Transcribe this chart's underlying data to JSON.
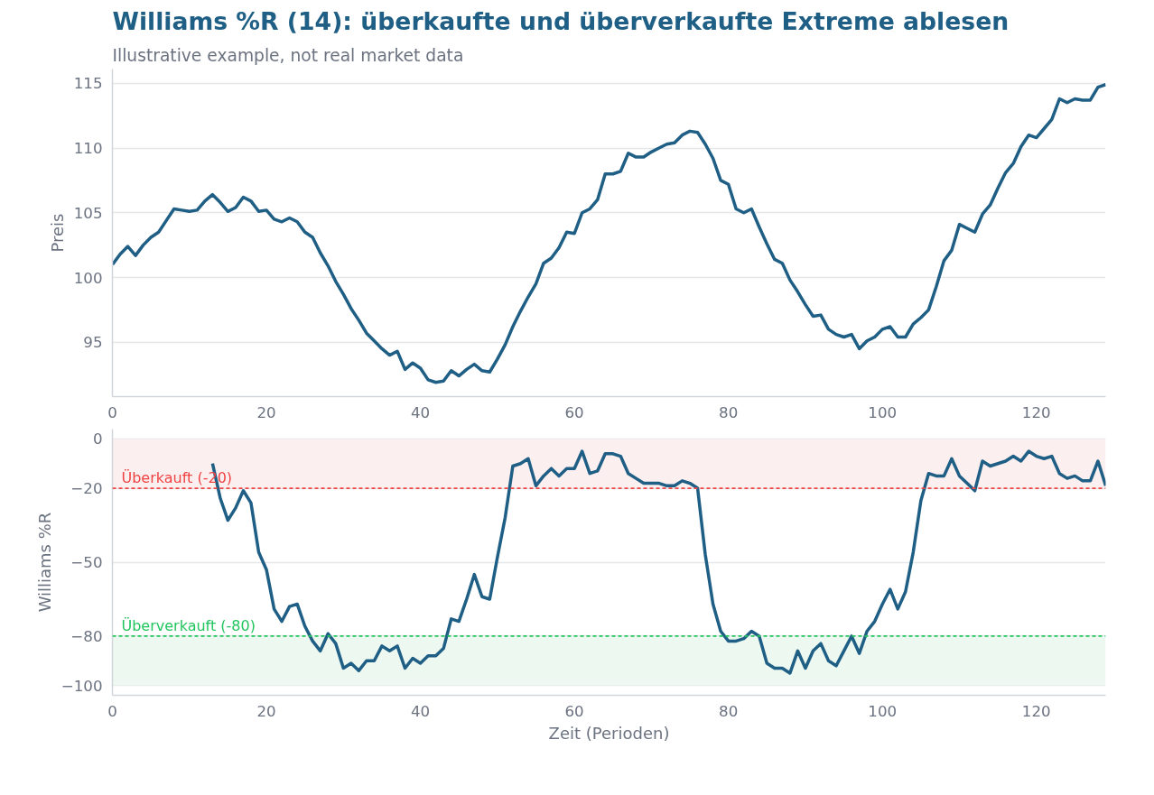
{
  "chart_data": [
    {
      "type": "line",
      "title": "Williams %R (14): überkaufte und überverkaufte Extreme ablesen",
      "subtitle": "Illustrative example, not real market data",
      "ylabel": "Preis",
      "x": [
        0,
        1,
        2,
        3,
        4,
        5,
        6,
        7,
        8,
        9,
        10,
        11,
        12,
        13,
        14,
        15,
        16,
        17,
        18,
        19,
        20,
        21,
        22,
        23,
        24,
        25,
        26,
        27,
        28,
        29,
        30,
        31,
        32,
        33,
        34,
        35,
        36,
        37,
        38,
        39,
        40,
        41,
        42,
        43,
        44,
        45,
        46,
        47,
        48,
        49,
        50,
        51,
        52,
        53,
        54,
        55,
        56,
        57,
        58,
        59,
        60,
        61,
        62,
        63,
        64,
        65,
        66,
        67,
        68,
        69,
        70,
        71,
        72,
        73,
        74,
        75,
        76,
        77,
        78,
        79,
        80,
        81,
        82,
        83,
        84,
        85,
        86,
        87,
        88,
        89,
        90,
        91,
        92,
        93,
        94,
        95,
        96,
        97,
        98,
        99,
        100,
        101,
        102,
        103,
        104,
        105,
        106,
        107,
        108,
        109,
        110,
        111,
        112,
        113,
        114,
        115,
        116,
        117,
        118,
        119,
        120,
        121,
        122,
        123,
        124,
        125,
        126,
        127,
        128,
        129
      ],
      "series": [
        {
          "color": "#1f5f85",
          "values": [
            101.0,
            101.8,
            102.4,
            101.7,
            102.5,
            103.1,
            103.5,
            104.4,
            105.3,
            105.2,
            105.1,
            105.2,
            105.9,
            106.4,
            105.8,
            105.1,
            105.4,
            106.2,
            105.9,
            105.1,
            105.2,
            104.5,
            104.3,
            104.6,
            104.3,
            103.5,
            103.1,
            101.9,
            100.9,
            99.7,
            98.7,
            97.6,
            96.7,
            95.7,
            95.1,
            94.5,
            94.0,
            94.3,
            92.9,
            93.4,
            93.0,
            92.1,
            91.9,
            92.0,
            92.8,
            92.4,
            92.9,
            93.3,
            92.8,
            92.7,
            93.7,
            94.8,
            96.2,
            97.4,
            98.5,
            99.5,
            101.1,
            101.5,
            102.3,
            103.5,
            103.4,
            105.0,
            105.3,
            106.0,
            108.0,
            108.0,
            108.2,
            109.6,
            109.3,
            109.3,
            109.7,
            110.0,
            110.3,
            110.4,
            111.0,
            111.3,
            111.2,
            110.3,
            109.2,
            107.5,
            107.2,
            105.3,
            105.0,
            105.3,
            103.9,
            102.6,
            101.4,
            101.1,
            99.8,
            98.9,
            97.9,
            97.0,
            97.1,
            96.0,
            95.6,
            95.4,
            95.6,
            94.5,
            95.1,
            95.4,
            96.0,
            96.2,
            95.4,
            95.4,
            96.4,
            96.9,
            97.5,
            99.3,
            101.3,
            102.1,
            104.1,
            103.8,
            103.5,
            104.9,
            105.6,
            106.9,
            108.1,
            108.8,
            110.1,
            111.0,
            110.8,
            111.5,
            112.2,
            113.8,
            113.5,
            113.8,
            113.7,
            113.7,
            114.7,
            114.9
          ]
        }
      ],
      "xlim": [
        0,
        129
      ],
      "xticks": [
        0,
        20,
        40,
        60,
        80,
        100,
        120
      ],
      "ylim": [
        90.8,
        116.1
      ],
      "yticks": [
        95,
        100,
        105,
        110,
        115
      ],
      "grid": "y"
    },
    {
      "type": "line",
      "xlabel": "Zeit (Perioden)",
      "ylabel": "Williams %R",
      "series": [
        {
          "color": "#1f5f85",
          "x": [
            13,
            14,
            15,
            16,
            17,
            18,
            19,
            20,
            21,
            22,
            23,
            24,
            25,
            26,
            27,
            28,
            29,
            30,
            31,
            32,
            33,
            34,
            35,
            36,
            37,
            38,
            39,
            40,
            41,
            42,
            43,
            44,
            45,
            46,
            47,
            48,
            49,
            50,
            51,
            52,
            53,
            54,
            55,
            56,
            57,
            58,
            59,
            60,
            61,
            62,
            63,
            64,
            65,
            66,
            67,
            68,
            69,
            70,
            71,
            72,
            73,
            74,
            75,
            76,
            77,
            78,
            79,
            80,
            81,
            82,
            83,
            84,
            85,
            86,
            87,
            88,
            89,
            90,
            91,
            92,
            93,
            94,
            95,
            96,
            97,
            98,
            99,
            100,
            101,
            102,
            103,
            104,
            105,
            106,
            107,
            108,
            109,
            110,
            111,
            112,
            113,
            114,
            115,
            116,
            117,
            118,
            119,
            120,
            121,
            122,
            123,
            124,
            125,
            126,
            127,
            128,
            129
          ],
          "values": [
            -10,
            -24,
            -33,
            -28,
            -21,
            -26,
            -46,
            -53,
            -69,
            -74,
            -68,
            -67,
            -76,
            -82,
            -86,
            -79,
            -83,
            -93,
            -91,
            -94,
            -90,
            -90,
            -84,
            -86,
            -84,
            -93,
            -89,
            -91,
            -88,
            -88,
            -85,
            -73,
            -74,
            -65,
            -55,
            -64,
            -65,
            -48,
            -32,
            -11,
            -10,
            -8,
            -19,
            -15,
            -12,
            -15,
            -12,
            -12,
            -5,
            -14,
            -13,
            -6,
            -6,
            -7,
            -14,
            -16,
            -18,
            -18,
            -18,
            -19,
            -19,
            -17,
            -18,
            -20,
            -47,
            -67,
            -78,
            -82,
            -82,
            -81,
            -78,
            -80,
            -91,
            -93,
            -93,
            -95,
            -86,
            -93,
            -86,
            -83,
            -90,
            -92,
            -86,
            -80,
            -87,
            -78,
            -74,
            -67,
            -61,
            -69,
            -62,
            -46,
            -25,
            -14,
            -15,
            -15,
            -8,
            -15,
            -18,
            -21,
            -9,
            -11,
            -10,
            -9,
            -7,
            -9,
            -5,
            -7,
            -8,
            -7,
            -14,
            -16,
            -15,
            -17,
            -17,
            -9,
            -19
          ]
        }
      ],
      "xlim": [
        0,
        129
      ],
      "xticks": [
        0,
        20,
        40,
        60,
        80,
        100,
        120
      ],
      "ylim": [
        -104,
        4
      ],
      "yticks": [
        0,
        -20,
        -50,
        -80,
        -100
      ],
      "grid": "y",
      "bands": [
        {
          "axis": "y",
          "from": -20,
          "to": 0,
          "color": "#fcefef"
        },
        {
          "axis": "y",
          "from": -100,
          "to": -80,
          "color": "#ecf8f0"
        }
      ],
      "ref_lines": [
        {
          "axis": "y",
          "value": -20,
          "label": "Überkauft (-20)",
          "color": "#ef4444",
          "line_style": "dashed"
        },
        {
          "axis": "y",
          "value": -80,
          "label": "Überverkauft (-80)",
          "color": "#22c55e",
          "line_style": "dashed"
        }
      ]
    }
  ]
}
